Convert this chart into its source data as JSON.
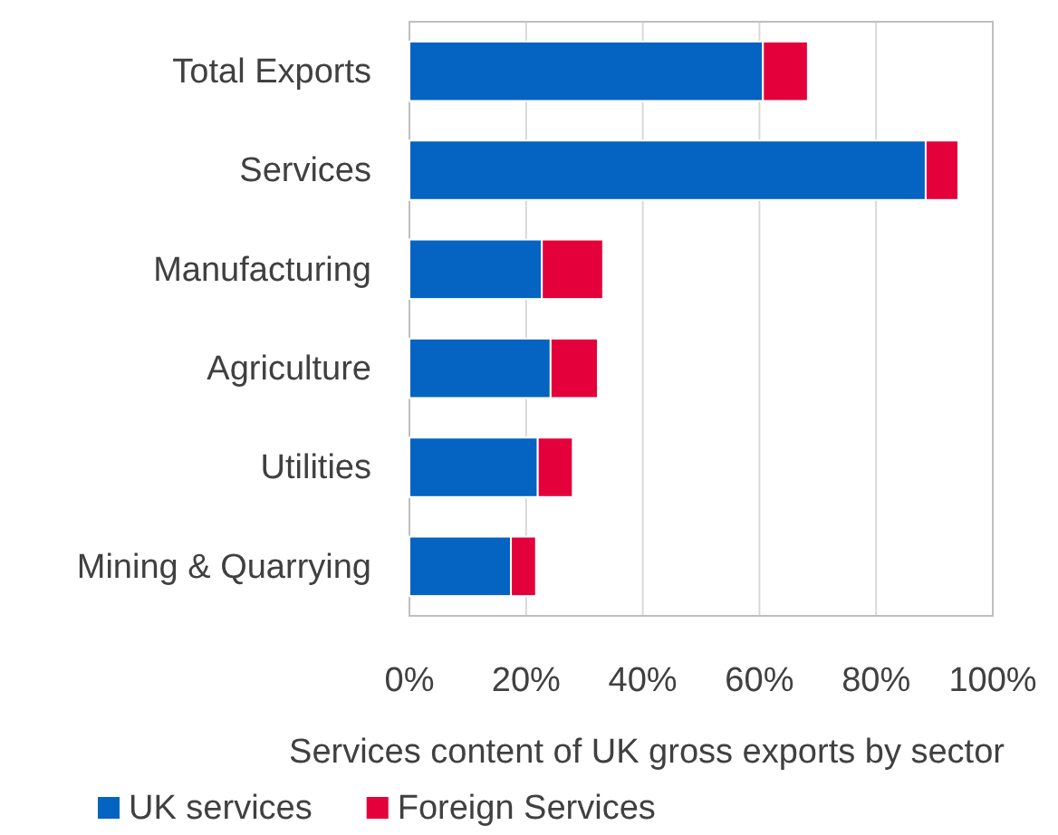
{
  "chart_data": {
    "type": "bar",
    "orientation": "horizontal",
    "stacked": true,
    "xlabel": "Services content of UK gross exports by sector",
    "categories": [
      "Total Exports",
      "Services",
      "Manufacturing",
      "Agriculture",
      "Utilities",
      "Mining & Quarrying"
    ],
    "series": [
      {
        "name": "UK services",
        "color": "#0563c1",
        "values": [
          60.6,
          88.5,
          22.7,
          24.2,
          22,
          17.4
        ]
      },
      {
        "name": "Foreign Services",
        "color": "#e4003b",
        "values": [
          7.7,
          5.6,
          10.5,
          8.1,
          6,
          4.3
        ]
      }
    ],
    "xlim": [
      0,
      100
    ],
    "xticks": [
      {
        "value": 0,
        "label": "0%"
      },
      {
        "value": 20,
        "label": "20%"
      },
      {
        "value": 40,
        "label": "40%"
      },
      {
        "value": 60,
        "label": "60%"
      },
      {
        "value": 80,
        "label": "80%"
      },
      {
        "value": 100,
        "label": "100%"
      }
    ],
    "grid": "x",
    "legend": "bottom"
  }
}
